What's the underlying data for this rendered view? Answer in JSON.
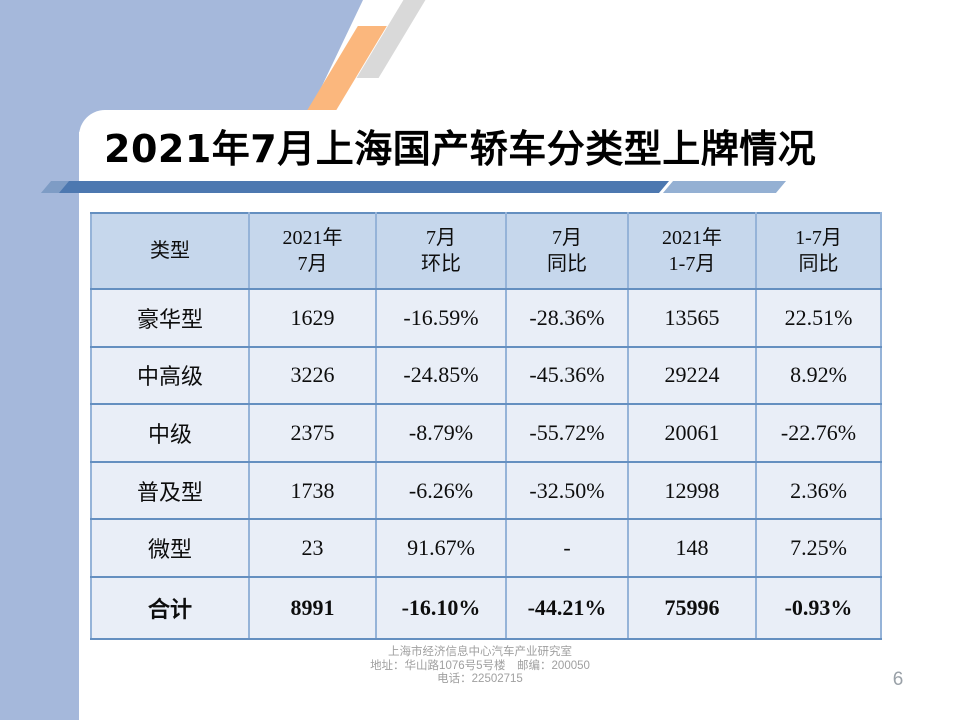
{
  "slide": {
    "title": "2021年7月上海国产轿车分类型上牌情况",
    "page_number": "6"
  },
  "table": {
    "headers": [
      {
        "l1": "类型"
      },
      {
        "l1": "2021年",
        "l2": "7月"
      },
      {
        "l1": "7月",
        "l2": "环比"
      },
      {
        "l1": "7月",
        "l2": "同比"
      },
      {
        "l1": "2021年",
        "l2": "1-7月"
      },
      {
        "l1": "1-7月",
        "l2": "同比"
      }
    ],
    "rows": [
      [
        "豪华型",
        "1629",
        "-16.59%",
        "-28.36%",
        "13565",
        "22.51%"
      ],
      [
        "中高级",
        "3226",
        "-24.85%",
        "-45.36%",
        "29224",
        "8.92%"
      ],
      [
        "中级",
        "2375",
        "-8.79%",
        "-55.72%",
        "20061",
        "-22.76%"
      ],
      [
        "普及型",
        "1738",
        "-6.26%",
        "-32.50%",
        "12998",
        "2.36%"
      ],
      [
        "微型",
        "23",
        "91.67%",
        "-",
        "148",
        "7.25%"
      ],
      [
        "合计",
        "8991",
        "-16.10%",
        "-44.21%",
        "75996",
        "-0.93%"
      ]
    ]
  },
  "footer": {
    "line1": "上海市经济信息中心汽车产业研究室",
    "line2": "地址：华山路1076号5号楼　邮编：200050",
    "line3": "电话：22502715"
  },
  "colors": {
    "periwinkle_bg": "#a5b8db",
    "orange_slash": "#fbb77d",
    "gray_slash": "#d9d9d9",
    "band_dark": "#4d78b0",
    "band_light": "#94b0d3",
    "header_bg": "#c6d7ec",
    "row_bg": "#e9eef7",
    "border_vertical": "#95b3d8",
    "border_horizontal": "#648fc0",
    "footer_text": "#a0a0a0"
  }
}
